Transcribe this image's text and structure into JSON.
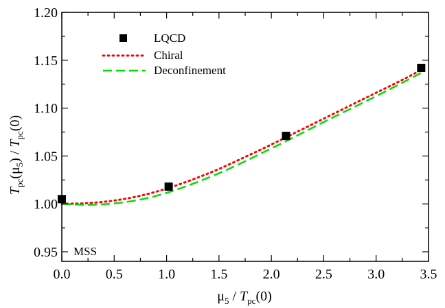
{
  "chart_data": {
    "type": "line",
    "xlabel": {
      "main": "μ",
      "sub": "5",
      "mid": " / ",
      "italic": "T",
      "sub2": "pc",
      "tail": "(0)"
    },
    "ylabel": {
      "italic1": "T",
      "sub1": "pc",
      "mid1": "(μ",
      "sub2": "5",
      "mid2": ") / ",
      "italic2": "T",
      "sub3": "pc",
      "tail": "(0)"
    },
    "xlim": [
      0,
      3.5
    ],
    "ylim": [
      0.94,
      1.2
    ],
    "x_ticks": [
      "0.0",
      "0.5",
      "1.0",
      "1.5",
      "2.0",
      "2.5",
      "3.0",
      "3.5"
    ],
    "x_tick_values": [
      0,
      0.5,
      1.0,
      1.5,
      2.0,
      2.5,
      3.0,
      3.5
    ],
    "y_ticks": [
      "0.95",
      "1.00",
      "1.05",
      "1.10",
      "1.15",
      "1.20"
    ],
    "y_tick_values": [
      0.95,
      1.0,
      1.05,
      1.1,
      1.15,
      1.2
    ],
    "grid": false,
    "legend_position": "top-left",
    "annotation": "MSS",
    "series": [
      {
        "name": "LQCD",
        "kind": "scatter",
        "marker": "square",
        "color": "#000000",
        "x": [
          0.0,
          1.02,
          2.14,
          3.43
        ],
        "y": [
          1.005,
          1.018,
          1.071,
          1.142
        ]
      },
      {
        "name": "Chiral",
        "kind": "line",
        "style": "dotted",
        "color": "#ff0000",
        "x": [
          0.0,
          0.25,
          0.5,
          0.75,
          1.0,
          1.25,
          1.5,
          1.75,
          2.0,
          2.25,
          2.5,
          2.75,
          3.0,
          3.25,
          3.45
        ],
        "y": [
          1.0,
          1.0008,
          1.0035,
          1.0085,
          1.016,
          1.0255,
          1.0365,
          1.049,
          1.062,
          1.0755,
          1.089,
          1.1025,
          1.116,
          1.1295,
          1.141
        ]
      },
      {
        "name": "Deconfinement",
        "kind": "line",
        "style": "dashed",
        "color": "#00dd00",
        "x": [
          0.0,
          0.25,
          0.5,
          0.75,
          1.0,
          1.25,
          1.5,
          1.75,
          2.0,
          2.25,
          2.5,
          2.75,
          3.0,
          3.25,
          3.45
        ],
        "y": [
          1.0,
          0.999,
          1.0005,
          1.0045,
          1.0115,
          1.021,
          1.032,
          1.0445,
          1.058,
          1.0715,
          1.0855,
          1.099,
          1.1125,
          1.1265,
          1.138
        ]
      }
    ]
  }
}
